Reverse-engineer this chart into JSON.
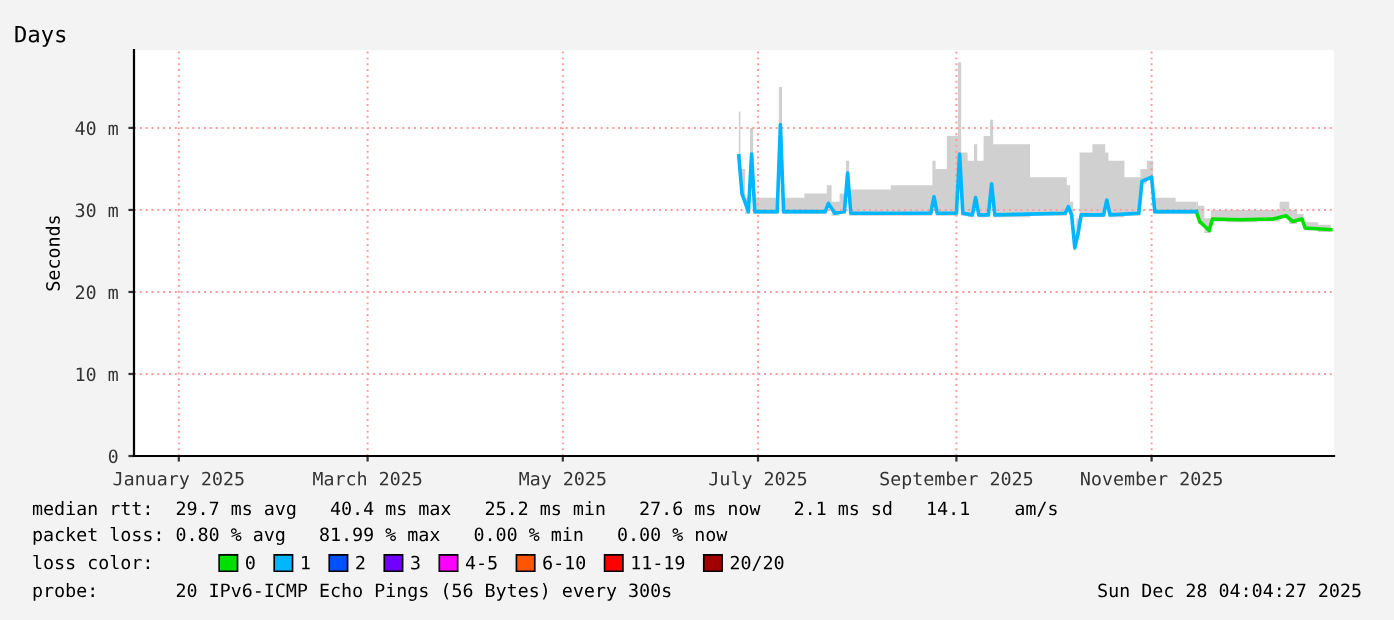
{
  "chart_data": {
    "type": "line",
    "title": "Days",
    "ylabel": "Seconds",
    "xlim": [
      "2024-12-18",
      "2025-12-28"
    ],
    "xticks": [
      {
        "value": "2025-01-01",
        "label": "January 2025"
      },
      {
        "value": "2025-03-01",
        "label": "March 2025"
      },
      {
        "value": "2025-05-01",
        "label": "May 2025"
      },
      {
        "value": "2025-07-01",
        "label": "July 2025"
      },
      {
        "value": "2025-09-01",
        "label": "September 2025"
      },
      {
        "value": "2025-11-01",
        "label": "November 2025"
      }
    ],
    "ylim": [
      0,
      49.5
    ],
    "yticks": [
      0,
      {
        "value": 10,
        "label": "10 m"
      },
      {
        "value": 20,
        "label": "20 m"
      },
      {
        "value": 30,
        "label": "30 m"
      },
      {
        "value": 40,
        "label": "40 m"
      }
    ],
    "grid": true,
    "legend": "bottom",
    "legend_title": "loss color:",
    "series": [
      {
        "name": "0",
        "color": "#00e000",
        "x": [
          "2025-11-15",
          "2025-11-16",
          "2025-11-19",
          "2025-11-20",
          "2025-11-29",
          "2025-12-09",
          "2025-12-13",
          "2025-12-15",
          "2025-12-18",
          "2025-12-19",
          "2025-12-27"
        ],
        "values": [
          29.8,
          28.6,
          27.5,
          28.9,
          28.8,
          28.9,
          29.3,
          28.6,
          28.9,
          27.8,
          27.6
        ],
        "lower": [
          29.5,
          28.3,
          27.2,
          28.6,
          28.5,
          28.6,
          29.0,
          28.3,
          28.6,
          27.5,
          27.3
        ],
        "upper": [
          31,
          30.5,
          29,
          30,
          30,
          30,
          31,
          30,
          29.5,
          28.5,
          28.2
        ]
      },
      {
        "name": "1",
        "color": "#00b7ff",
        "x": [
          "2025-06-25",
          "2025-06-26",
          "2025-06-28",
          "2025-06-29",
          "2025-06-30",
          "2025-07-07",
          "2025-07-08",
          "2025-07-09",
          "2025-07-22",
          "2025-07-23",
          "2025-07-25",
          "2025-07-28",
          "2025-07-29",
          "2025-07-30",
          "2025-08-24",
          "2025-08-25",
          "2025-08-26",
          "2025-09-01",
          "2025-09-02",
          "2025-09-03",
          "2025-09-06",
          "2025-09-07",
          "2025-09-08",
          "2025-09-11",
          "2025-09-12",
          "2025-09-13",
          "2025-10-05",
          "2025-10-06",
          "2025-10-07",
          "2025-10-08",
          "2025-10-09",
          "2025-10-10",
          "2025-10-17",
          "2025-10-18",
          "2025-10-19",
          "2025-10-28",
          "2025-10-29",
          "2025-11-01",
          "2025-11-02",
          "2025-11-15"
        ],
        "values": [
          36.6,
          32.0,
          29.8,
          36.8,
          29.8,
          29.8,
          40.4,
          29.8,
          29.8,
          30.8,
          29.6,
          29.8,
          34.5,
          29.6,
          29.6,
          31.6,
          29.6,
          29.6,
          36.8,
          29.6,
          29.4,
          31.5,
          29.4,
          29.4,
          33.2,
          29.4,
          29.6,
          30.4,
          29.4,
          25.4,
          27.1,
          29.4,
          29.4,
          31.2,
          29.4,
          29.6,
          33.5,
          34.0,
          29.8,
          29.8
        ],
        "lower": [
          36.3,
          31.7,
          29.5,
          36.5,
          29.5,
          29.5,
          40.1,
          29.5,
          29.5,
          30.5,
          29.3,
          29.5,
          34.2,
          29.3,
          29.3,
          31.3,
          29.3,
          29.3,
          36.5,
          29.3,
          29.1,
          31.2,
          29.1,
          29.1,
          32.9,
          29.1,
          29.3,
          30.1,
          29.1,
          25.1,
          26.8,
          29.1,
          29.1,
          30.9,
          29.1,
          29.3,
          33.2,
          33.7,
          29.5,
          29.5
        ],
        "upper": [
          42,
          35,
          31.5,
          40,
          31.5,
          31.5,
          45,
          31.5,
          32,
          33,
          31,
          32,
          36,
          32.5,
          33,
          36,
          35,
          39,
          48,
          37,
          36,
          38,
          36,
          39,
          41,
          38,
          34,
          33,
          31,
          27,
          29,
          37,
          38,
          37,
          36,
          34,
          35,
          36,
          31.5,
          31
        ]
      },
      {
        "name": "2",
        "color": "#0050ff"
      },
      {
        "name": "3",
        "color": "#7000ff"
      },
      {
        "name": "4-5",
        "color": "#ff00ff"
      },
      {
        "name": "6-10",
        "color": "#ff5500"
      },
      {
        "name": "11-19",
        "color": "#ff0000"
      },
      {
        "name": "20/20",
        "color": "#a10000"
      }
    ],
    "annotations": [
      "median rtt:  29.7 ms avg   40.4 ms max   25.2 ms min   27.6 ms now   2.1 ms sd   14.1    am/s",
      "packet loss: 0.80 % avg   81.99 % max   0.00 % min   0.00 % now",
      "probe:       20 IPv6-ICMP Echo Pings (56 Bytes) every 300s",
      "Sun Dec 28 04:04:27 2025"
    ]
  }
}
